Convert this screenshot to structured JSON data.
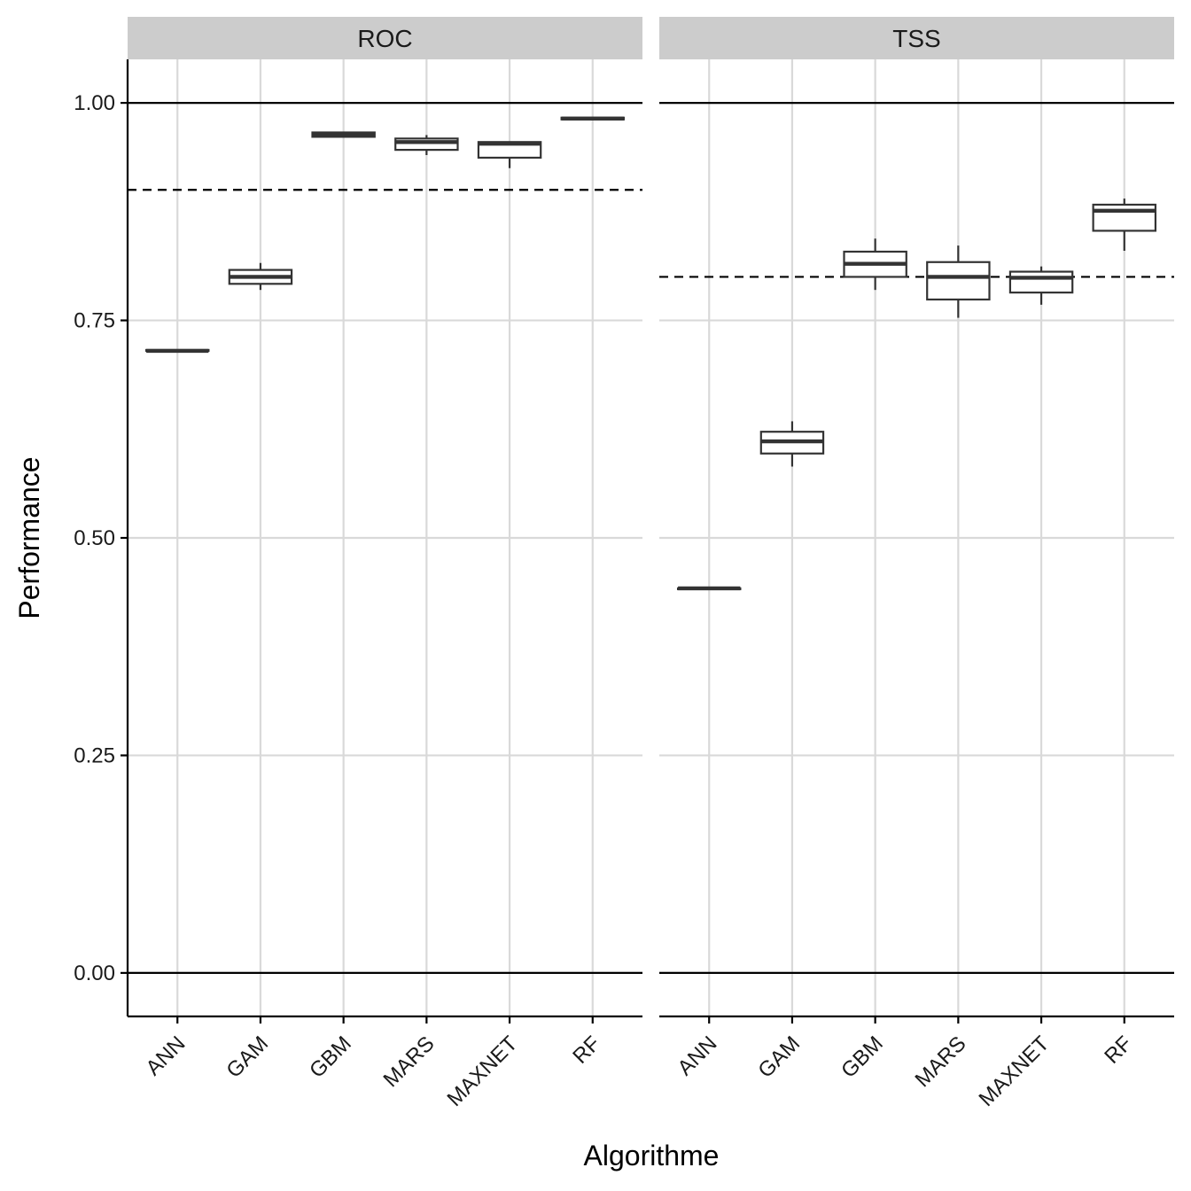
{
  "chart_data": {
    "type": "boxplot",
    "xlabel": "Algorithme",
    "ylabel": "Performance",
    "ylim": [
      -0.05,
      1.05
    ],
    "yticks": [
      0.0,
      0.25,
      0.5,
      0.75,
      1.0
    ],
    "ytick_labels": [
      "0.00",
      "0.25",
      "0.50",
      "0.75",
      "1.00"
    ],
    "grid": true,
    "categories": [
      "ANN",
      "GAM",
      "GBM",
      "MARS",
      "MAXNET",
      "RF"
    ],
    "reference_lines": [
      0,
      1
    ],
    "panels": [
      {
        "name": "ROC",
        "threshold": 0.9,
        "boxes": [
          {
            "category": "ANN",
            "min": 0.715,
            "q1": 0.715,
            "median": 0.715,
            "q3": 0.716,
            "max": 0.716
          },
          {
            "category": "GAM",
            "min": 0.785,
            "q1": 0.792,
            "median": 0.8,
            "q3": 0.808,
            "max": 0.816
          },
          {
            "category": "GBM",
            "min": 0.96,
            "q1": 0.961,
            "median": 0.964,
            "q3": 0.966,
            "max": 0.967
          },
          {
            "category": "MARS",
            "min": 0.94,
            "q1": 0.946,
            "median": 0.955,
            "q3": 0.959,
            "max": 0.963
          },
          {
            "category": "MAXNET",
            "min": 0.925,
            "q1": 0.937,
            "median": 0.953,
            "q3": 0.955,
            "max": 0.955
          },
          {
            "category": "RF",
            "min": 0.981,
            "q1": 0.981,
            "median": 0.982,
            "q3": 0.983,
            "max": 0.983
          }
        ]
      },
      {
        "name": "TSS",
        "threshold": 0.8,
        "boxes": [
          {
            "category": "ANN",
            "min": 0.441,
            "q1": 0.441,
            "median": 0.442,
            "q3": 0.442,
            "max": 0.442
          },
          {
            "category": "GAM",
            "min": 0.582,
            "q1": 0.597,
            "median": 0.611,
            "q3": 0.622,
            "max": 0.634
          },
          {
            "category": "GBM",
            "min": 0.785,
            "q1": 0.8,
            "median": 0.815,
            "q3": 0.829,
            "max": 0.844
          },
          {
            "category": "MARS",
            "min": 0.753,
            "q1": 0.774,
            "median": 0.8,
            "q3": 0.817,
            "max": 0.836
          },
          {
            "category": "MAXNET",
            "min": 0.768,
            "q1": 0.782,
            "median": 0.799,
            "q3": 0.806,
            "max": 0.812
          },
          {
            "category": "RF",
            "min": 0.83,
            "q1": 0.853,
            "median": 0.876,
            "q3": 0.883,
            "max": 0.89
          }
        ]
      }
    ]
  }
}
